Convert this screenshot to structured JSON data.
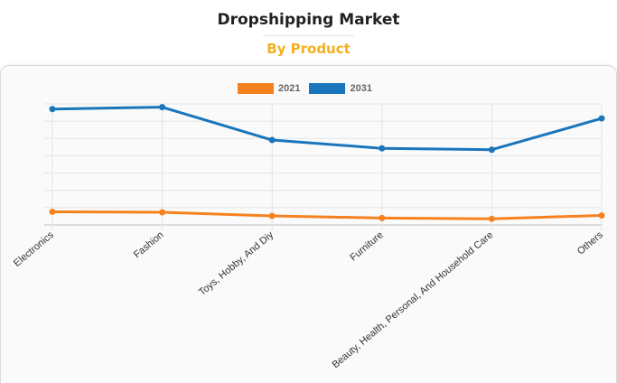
{
  "header": {
    "title": "Dropshipping Market",
    "subtitle": "By Product"
  },
  "chart_data": {
    "type": "line",
    "categories": [
      "Electronics",
      "Fashion",
      "Toys, Hobby, And Diy",
      "Furniture",
      "Beauty, Health, Personal, And Household Care",
      "Others"
    ],
    "series": [
      {
        "name": "2021",
        "color": "#f5821f",
        "values": [
          0.76,
          0.73,
          0.52,
          0.4,
          0.35,
          0.55
        ]
      },
      {
        "name": "2031",
        "color": "#1a75bb",
        "values": [
          6.7,
          6.81,
          4.91,
          4.43,
          4.35,
          6.16
        ]
      }
    ],
    "ylim": [
      0,
      7
    ],
    "grid": true,
    "legend_position": "top-center",
    "xlabel": "",
    "ylabel": ""
  }
}
